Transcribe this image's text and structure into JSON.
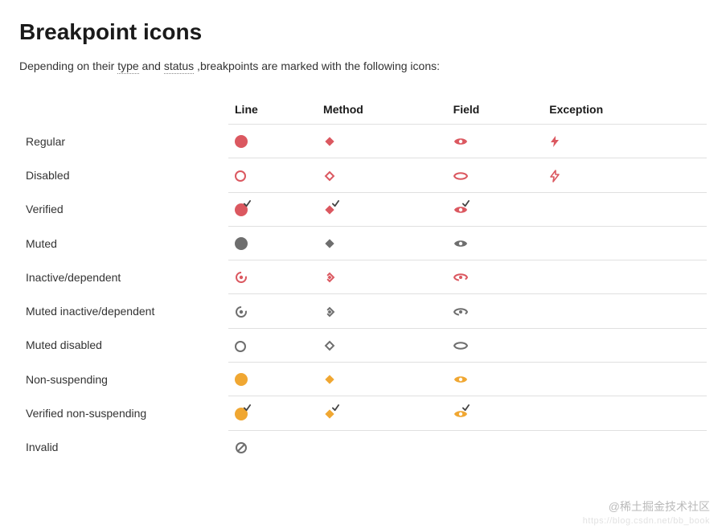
{
  "title": "Breakpoint icons",
  "intro": {
    "pre": "Depending on their ",
    "term1": "type",
    "mid": " and ",
    "term2": "status",
    "post": " ,breakpoints are marked with the following icons:"
  },
  "columns": [
    "Line",
    "Method",
    "Field",
    "Exception"
  ],
  "rows": [
    {
      "label": "Regular",
      "cells": [
        {
          "icon": "circle-fill",
          "color": "#db5860"
        },
        {
          "icon": "diamond-fill",
          "color": "#db5860"
        },
        {
          "icon": "eye-fill",
          "color": "#db5860"
        },
        {
          "icon": "bolt-fill",
          "color": "#db5860"
        }
      ]
    },
    {
      "label": "Disabled",
      "cells": [
        {
          "icon": "circle-ring",
          "color": "#db5860"
        },
        {
          "icon": "diamond-ring",
          "color": "#db5860"
        },
        {
          "icon": "eye-ring",
          "color": "#db5860"
        },
        {
          "icon": "bolt-ring",
          "color": "#db5860"
        }
      ]
    },
    {
      "label": "Verified",
      "cells": [
        {
          "icon": "circle-check",
          "color": "#db5860"
        },
        {
          "icon": "diamond-check",
          "color": "#db5860"
        },
        {
          "icon": "eye-check",
          "color": "#db5860"
        },
        null
      ]
    },
    {
      "label": "Muted",
      "cells": [
        {
          "icon": "circle-fill",
          "color": "#6e6e6e"
        },
        {
          "icon": "diamond-fill",
          "color": "#6e6e6e"
        },
        {
          "icon": "eye-fill",
          "color": "#6e6e6e"
        },
        null
      ]
    },
    {
      "label": "Inactive/dependent",
      "cells": [
        {
          "icon": "circle-partial",
          "color": "#db5860"
        },
        {
          "icon": "diamond-partial",
          "color": "#db5860"
        },
        {
          "icon": "eye-partial",
          "color": "#db5860"
        },
        null
      ]
    },
    {
      "label": "Muted inactive/dependent",
      "cells": [
        {
          "icon": "circle-partial",
          "color": "#6e6e6e"
        },
        {
          "icon": "diamond-partial",
          "color": "#6e6e6e"
        },
        {
          "icon": "eye-partial",
          "color": "#6e6e6e"
        },
        null
      ]
    },
    {
      "label": "Muted disabled",
      "cells": [
        {
          "icon": "circle-ring",
          "color": "#6e6e6e"
        },
        {
          "icon": "diamond-ring",
          "color": "#6e6e6e"
        },
        {
          "icon": "eye-ring",
          "color": "#6e6e6e"
        },
        null
      ]
    },
    {
      "label": "Non-suspending",
      "cells": [
        {
          "icon": "circle-fill",
          "color": "#f0a732"
        },
        {
          "icon": "diamond-fill",
          "color": "#f0a732"
        },
        {
          "icon": "eye-fill",
          "color": "#f0a732"
        },
        null
      ]
    },
    {
      "label": "Verified non-suspending",
      "cells": [
        {
          "icon": "circle-check",
          "color": "#f0a732"
        },
        {
          "icon": "diamond-check",
          "color": "#f0a732"
        },
        {
          "icon": "eye-check",
          "color": "#f0a732"
        },
        null
      ]
    },
    {
      "label": "Invalid",
      "cells": [
        {
          "icon": "slash",
          "color": "#6e6e6e"
        },
        null,
        null,
        null
      ]
    }
  ],
  "watermark": "@稀土掘金技术社区",
  "watermark_sub": "https://blog.csdn.net/bb_book"
}
